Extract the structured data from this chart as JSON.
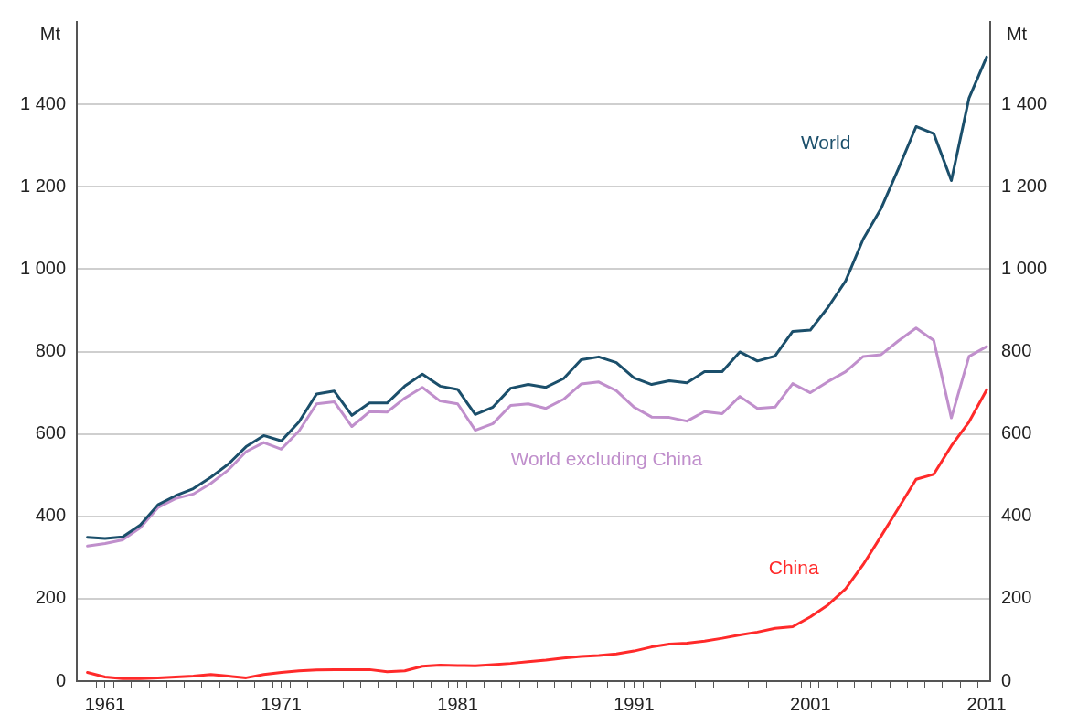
{
  "chart_data": {
    "type": "line",
    "ylabel": "Mt",
    "y2label": "Mt",
    "x": [
      1960,
      1961,
      1962,
      1963,
      1964,
      1965,
      1966,
      1967,
      1968,
      1969,
      1970,
      1971,
      1972,
      1973,
      1974,
      1975,
      1976,
      1977,
      1978,
      1979,
      1980,
      1981,
      1982,
      1983,
      1984,
      1985,
      1986,
      1987,
      1988,
      1989,
      1990,
      1991,
      1992,
      1993,
      1994,
      1995,
      1996,
      1997,
      1998,
      1999,
      2000,
      2001,
      2002,
      2003,
      2004,
      2005,
      2006,
      2007,
      2008,
      2009,
      2010,
      2011
    ],
    "series": [
      {
        "name": "World",
        "color": "#1b4f6b",
        "values": [
          349,
          346,
          350,
          379,
          428,
          450,
          467,
          495,
          527,
          569,
          596,
          583,
          629,
          697,
          704,
          645,
          675,
          675,
          716,
          745,
          716,
          708,
          647,
          665,
          711,
          720,
          713,
          734,
          780,
          787,
          773,
          736,
          720,
          729,
          724,
          751,
          751,
          799,
          777,
          789,
          849,
          852,
          907,
          971,
          1073,
          1146,
          1244,
          1346,
          1329,
          1215,
          1415,
          1515
        ]
      },
      {
        "name": "World excluding China",
        "color": "#c08fcc",
        "values": [
          328,
          334,
          343,
          372,
          421,
          443,
          454,
          480,
          513,
          557,
          579,
          563,
          607,
          673,
          678,
          618,
          654,
          653,
          687,
          713,
          680,
          673,
          609,
          625,
          669,
          673,
          662,
          684,
          721,
          726,
          705,
          665,
          641,
          640,
          631,
          654,
          649,
          691,
          662,
          665,
          722,
          700,
          727,
          751,
          788,
          792,
          826,
          857,
          827,
          639,
          788,
          812
        ]
      },
      {
        "name": "China",
        "color": "#ff2a2a",
        "values": [
          21,
          10,
          6,
          6,
          8,
          10,
          12,
          16,
          12,
          8,
          16,
          21,
          25,
          27,
          28,
          28,
          28,
          23,
          25,
          36,
          39,
          38,
          37,
          40,
          43,
          47,
          51,
          56,
          60,
          62,
          66,
          73,
          83,
          90,
          92,
          97,
          104,
          112,
          119,
          128,
          132,
          156,
          185,
          224,
          283,
          351,
          420,
          490,
          502,
          571,
          629,
          707
        ]
      }
    ],
    "xlim": [
      1959.4,
      2011.2
    ],
    "xticks": [
      {
        "value": 1960.5,
        "label": null
      },
      1961,
      {
        "value": 1961.5,
        "label": null
      },
      {
        "value": 1962.5,
        "label": null
      },
      {
        "value": 1963.5,
        "label": null
      },
      {
        "value": 1964.5,
        "label": null
      },
      {
        "value": 1965.5,
        "label": null
      },
      {
        "value": 1966.5,
        "label": null
      },
      {
        "value": 1967.5,
        "label": null
      },
      {
        "value": 1968.5,
        "label": null
      },
      {
        "value": 1969.5,
        "label": null
      },
      {
        "value": 1970.5,
        "label": null
      },
      1971,
      {
        "value": 1971.5,
        "label": null
      },
      {
        "value": 1972.5,
        "label": null
      },
      {
        "value": 1973.5,
        "label": null
      },
      {
        "value": 1974.5,
        "label": null
      },
      {
        "value": 1975.5,
        "label": null
      },
      {
        "value": 1976.5,
        "label": null
      },
      {
        "value": 1977.5,
        "label": null
      },
      {
        "value": 1978.5,
        "label": null
      },
      {
        "value": 1979.5,
        "label": null
      },
      {
        "value": 1980.5,
        "label": null
      },
      1981,
      {
        "value": 1981.5,
        "label": null
      },
      {
        "value": 1982.5,
        "label": null
      },
      {
        "value": 1983.5,
        "label": null
      },
      {
        "value": 1984.5,
        "label": null
      },
      {
        "value": 1985.5,
        "label": null
      },
      {
        "value": 1986.5,
        "label": null
      },
      {
        "value": 1987.5,
        "label": null
      },
      {
        "value": 1988.5,
        "label": null
      },
      {
        "value": 1989.5,
        "label": null
      },
      {
        "value": 1990.5,
        "label": null
      },
      1991,
      {
        "value": 1991.5,
        "label": null
      },
      {
        "value": 1992.5,
        "label": null
      },
      {
        "value": 1993.5,
        "label": null
      },
      {
        "value": 1994.5,
        "label": null
      },
      {
        "value": 1995.5,
        "label": null
      },
      {
        "value": 1996.5,
        "label": null
      },
      {
        "value": 1997.5,
        "label": null
      },
      {
        "value": 1998.5,
        "label": null
      },
      {
        "value": 1999.5,
        "label": null
      },
      {
        "value": 2000.5,
        "label": null
      },
      2001,
      {
        "value": 2001.5,
        "label": null
      },
      {
        "value": 2002.5,
        "label": null
      },
      {
        "value": 2003.5,
        "label": null
      },
      {
        "value": 2004.5,
        "label": null
      },
      {
        "value": 2005.5,
        "label": null
      },
      {
        "value": 2006.5,
        "label": null
      },
      {
        "value": 2007.5,
        "label": null
      },
      {
        "value": 2008.5,
        "label": null
      },
      {
        "value": 2009.5,
        "label": null
      },
      {
        "value": 2010.5,
        "label": null
      },
      2011
    ],
    "ylim": [
      0,
      1600
    ],
    "yticks": [
      0,
      200,
      400,
      600,
      800,
      {
        "value": 1000,
        "label": "1 000"
      },
      {
        "value": 1200,
        "label": "1 200"
      },
      {
        "value": 1400,
        "label": "1 400"
      }
    ],
    "y2lim": [
      0,
      1600
    ],
    "y2ticks": [
      0,
      200,
      400,
      600,
      800,
      {
        "value": 1000,
        "label": "1 000"
      },
      {
        "value": 1200,
        "label": "1 200"
      },
      {
        "value": 1400,
        "label": "1 400"
      }
    ],
    "grid": "y",
    "legend": false,
    "marker": "none",
    "line_style": "solid"
  }
}
